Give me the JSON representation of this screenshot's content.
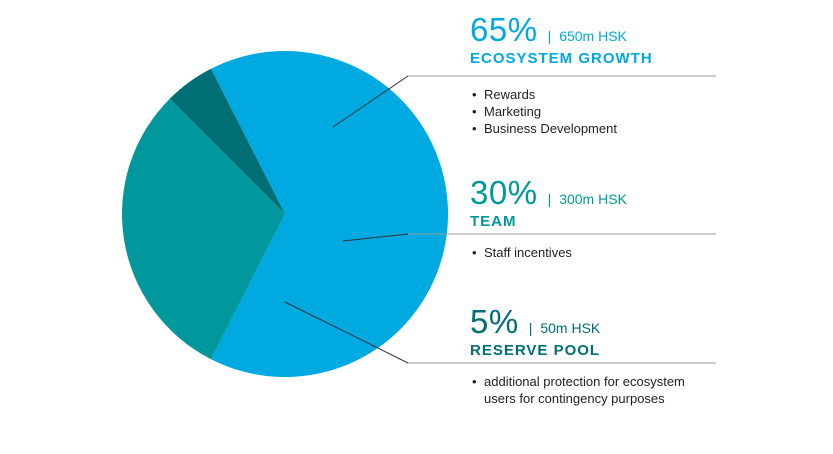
{
  "colors": {
    "ecosystem": "#00a9e0",
    "team": "#00989c",
    "reserve": "#006e75",
    "leader": "#333333",
    "rule": "#9a9a9a",
    "background": "#ffffff"
  },
  "segments": [
    {
      "percent": "65%",
      "separator": "|",
      "amount": "650m HSK",
      "category": "ECOSYSTEM GROWTH",
      "bullets": [
        "Rewards",
        "Marketing",
        "Business Development"
      ]
    },
    {
      "percent": "30%",
      "separator": "|",
      "amount": "300m HSK",
      "category": "TEAM",
      "bullets": [
        "Staff incentives"
      ]
    },
    {
      "percent": "5%",
      "separator": "|",
      "amount": "50m HSK",
      "category": "RESERVE POOL",
      "bullets": [
        "additional protection for ecosystem users for contingency purposes"
      ]
    }
  ],
  "chart_data": {
    "type": "pie",
    "categories": [
      "ECOSYSTEM GROWTH",
      "TEAM",
      "RESERVE POOL"
    ],
    "values": [
      65,
      30,
      5
    ],
    "amounts": [
      "650m HSK",
      "300m HSK",
      "50m HSK"
    ],
    "unit": "%"
  }
}
